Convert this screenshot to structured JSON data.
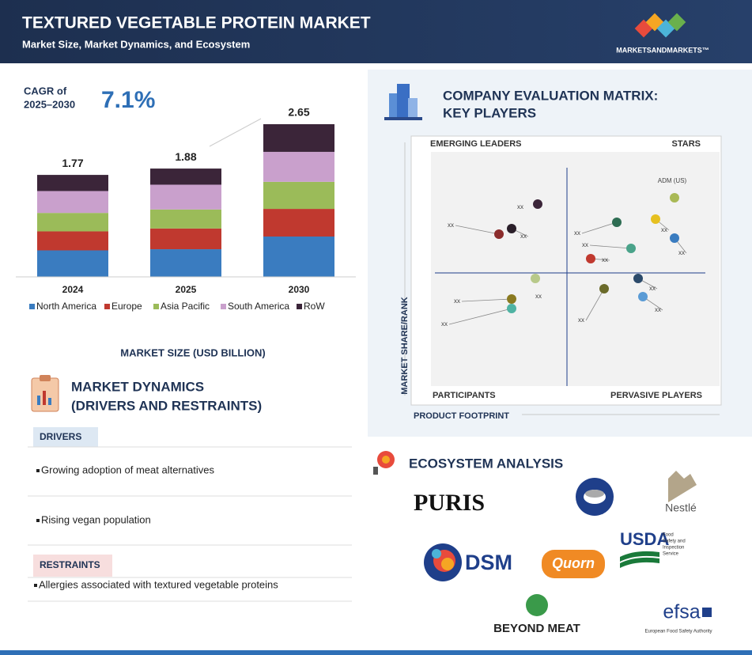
{
  "header": {
    "title": "TEXTURED VEGETABLE PROTEIN MARKET",
    "subtitle": "Market Size, Market Dynamics, and Ecosystem",
    "brand": "MARKETSANDMARKETS™"
  },
  "cagr": {
    "label": [
      "CAGR of",
      "2025–2030"
    ],
    "value": "7.1%"
  },
  "chart_data": {
    "type": "bar",
    "stacked": true,
    "categories": [
      "2024",
      "2025",
      "2030"
    ],
    "totals": [
      1.77,
      1.88,
      2.65
    ],
    "series": [
      {
        "name": "North America",
        "color": "#3a7cc0",
        "values": [
          0.46,
          0.48,
          0.7
        ]
      },
      {
        "name": "Europe",
        "color": "#c0392f",
        "values": [
          0.33,
          0.36,
          0.48
        ]
      },
      {
        "name": "Asia Pacific",
        "color": "#9bbb59",
        "values": [
          0.32,
          0.33,
          0.47
        ]
      },
      {
        "name": "South America",
        "color": "#c9a0cc",
        "values": [
          0.38,
          0.43,
          0.52
        ]
      },
      {
        "name": "RoW",
        "color": "#3b2539",
        "values": [
          0.28,
          0.28,
          0.48
        ]
      }
    ],
    "caption": "MARKET SIZE (USD BILLION)"
  },
  "dynamics": {
    "title": [
      "MARKET DYNAMICS",
      "(DRIVERS AND RESTRAINTS)"
    ],
    "drivers": {
      "heading": "DRIVERS",
      "items": [
        "Growing adoption of meat alternatives",
        "Rising vegan population"
      ]
    },
    "restraints": {
      "heading": "RESTRAINTS",
      "items": [
        "Allergies associated with textured vegetable proteins"
      ]
    }
  },
  "matrix": {
    "title": [
      "COMPANY EVALUATION MATRIX:",
      "KEY PLAYERS"
    ],
    "quadrants": {
      "top_left": "EMERGING LEADERS",
      "top_right": "STARS",
      "bottom_left": "PARTICIPANTS",
      "bottom_right": "PERVASIVE PLAYERS"
    },
    "y_label": "MARKET SHARE/RANK",
    "x_label": "PRODUCT FOOTPRINT",
    "points": [
      {
        "label": "xx",
        "color": "#3b2539"
      },
      {
        "label": "xx",
        "color": "#2b1f2a"
      },
      {
        "label": "xx",
        "color": "#8b2c2c"
      },
      {
        "label": "ADM (US)",
        "color": "#a9b955"
      },
      {
        "label": "xx",
        "color": "#e6c020"
      },
      {
        "label": "xx",
        "color": "#2e6d53"
      },
      {
        "label": "xx",
        "color": "#3a7cc0"
      },
      {
        "label": "xx",
        "color": "#4aa38a"
      },
      {
        "label": "xx",
        "color": "#c0392f"
      },
      {
        "label": "xx",
        "color": "#b8c98a"
      },
      {
        "label": "xx",
        "color": "#2b4a6a"
      },
      {
        "label": "xx",
        "color": "#5a9bd5"
      },
      {
        "label": "xx",
        "color": "#6b6b2a"
      },
      {
        "label": "xx",
        "color": "#8a7a20"
      },
      {
        "label": "xx",
        "color": "#4fb3a3"
      }
    ]
  },
  "ecosystem": {
    "title": "ECOSYSTEM ANALYSIS",
    "logos": {
      "puris": "PURIS",
      "nestle": "Nestlé",
      "dsm": "DSM",
      "quorn": "Quorn",
      "usda": "USDA",
      "usda_sub": [
        "Food",
        "Safety and",
        "Inspection",
        "Service"
      ],
      "beyond_meat": "BEYOND MEAT",
      "efsa": "efsa",
      "efsa_sub": "European Food Safety Authority"
    }
  }
}
